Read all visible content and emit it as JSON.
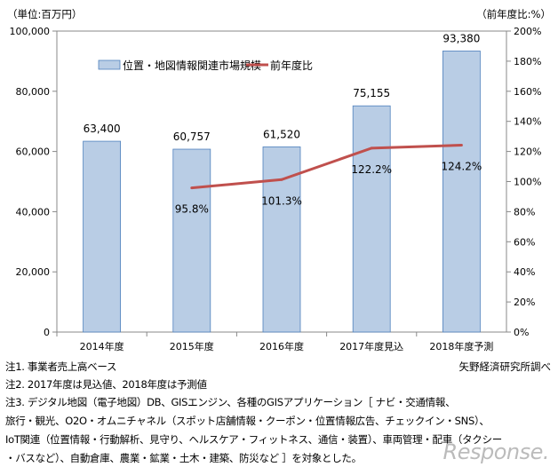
{
  "chart_data": {
    "type": "bar+line",
    "left_unit_label": "（単位:百万円）",
    "right_unit_label": "（前年度比:%）",
    "categories": [
      "2014年度",
      "2015年度",
      "2016年度",
      "2017年度見込",
      "2018年度予測"
    ],
    "series": [
      {
        "name": "位置・地図情報関連市場規模",
        "type": "bar",
        "axis": "left",
        "color": "#b9cde5",
        "values": [
          63400,
          60757,
          61520,
          75155,
          93380
        ],
        "labels": [
          "63,400",
          "60,757",
          "61,520",
          "75,155",
          "93,380"
        ]
      },
      {
        "name": "前年度比",
        "type": "line",
        "axis": "right",
        "color": "#c0504d",
        "values": [
          null,
          95.8,
          101.3,
          122.2,
          124.2
        ],
        "labels": [
          "",
          "95.8%",
          "101.3%",
          "122.2%",
          "124.2%"
        ]
      }
    ],
    "left_axis": {
      "ylim": [
        0,
        100000
      ],
      "ticks": [
        "0",
        "20,000",
        "40,000",
        "60,000",
        "80,000",
        "100,000"
      ]
    },
    "right_axis": {
      "ylim": [
        0,
        200
      ],
      "ticks": [
        "0%",
        "20%",
        "40%",
        "60%",
        "80%",
        "100%",
        "120%",
        "140%",
        "160%",
        "180%",
        "200%"
      ]
    },
    "legend": "top-left inside plot",
    "grid": false
  },
  "notes": [
    "注1. 事業者売上高ベース",
    "注2. 2017年度は見込値、2018年度は予測値",
    "注3. デジタル地図（電子地図）DB、GISエンジン、各種のGISアプリケーション［ ナビ・交通情報、",
    "旅行・観光、O2O・オムニチャネル（スポット店舗情報・クーポン・位置情報広告、チェックイン・SNS）、",
    "IoT関連（位置情報・行動解析、見守り、ヘルスケア・フィットネス、通信・装置）、車両管理・配車（タクシー",
    "・バスなど）、自動倉庫、農業・鉱業・土木・建築、防災など ］を対象とした。"
  ],
  "source": "矢野経済研究所調べ",
  "watermark": "Response."
}
